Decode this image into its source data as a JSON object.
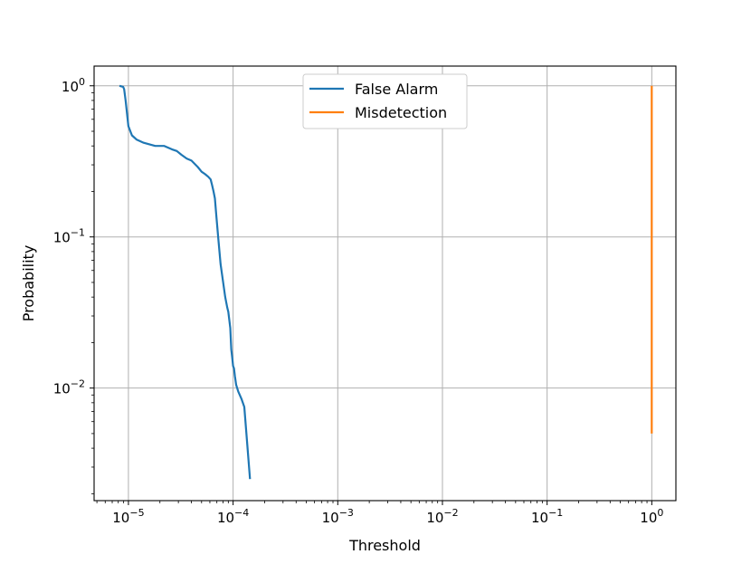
{
  "chart_data": {
    "type": "line",
    "xlabel": "Threshold",
    "ylabel": "Probability",
    "xscale": "log",
    "yscale": "log",
    "xlim": [
      4.7e-06,
      1.7
    ],
    "ylim": [
      0.0018,
      1.35
    ],
    "grid": true,
    "legend_position": "upper center",
    "x_tick_labels": [
      {
        "base": "10",
        "exp": "−5"
      },
      {
        "base": "10",
        "exp": "−4"
      },
      {
        "base": "10",
        "exp": "−3"
      },
      {
        "base": "10",
        "exp": "−2"
      },
      {
        "base": "10",
        "exp": "−1"
      },
      {
        "base": "10",
        "exp": "0"
      }
    ],
    "y_tick_labels": [
      {
        "base": "10",
        "exp": "−2"
      },
      {
        "base": "10",
        "exp": "−1"
      },
      {
        "base": "10",
        "exp": "0"
      }
    ],
    "series": [
      {
        "name": "False Alarm",
        "color": "#1f77b4",
        "x": [
          8.2e-06,
          8.9e-06,
          9.1e-06,
          9.4e-06,
          1e-05,
          1.08e-05,
          1.2e-05,
          1.4e-05,
          1.8e-05,
          2.2e-05,
          2.6e-05,
          2.9e-05,
          3.2e-05,
          3.6e-05,
          4e-05,
          4.6e-05,
          5e-05,
          5.4e-05,
          5.8e-05,
          6.1e-05,
          6.3e-05,
          6.5e-05,
          6.7e-05,
          6.9e-05,
          7.2e-05,
          7.6e-05,
          8.4e-05,
          8.6e-05,
          8.8e-05,
          9e-05,
          9.4e-05,
          9.6e-05,
          9.8e-05,
          0.0001,
          0.000102,
          0.000104,
          0.000107,
          0.000112,
          0.00012,
          0.000128,
          0.000145
        ],
        "y": [
          1.0,
          0.985,
          0.95,
          0.8,
          0.54,
          0.47,
          0.44,
          0.42,
          0.4,
          0.4,
          0.38,
          0.37,
          0.35,
          0.33,
          0.32,
          0.29,
          0.27,
          0.26,
          0.25,
          0.24,
          0.22,
          0.2,
          0.18,
          0.14,
          0.1,
          0.066,
          0.04,
          0.037,
          0.034,
          0.032,
          0.025,
          0.018,
          0.016,
          0.014,
          0.0135,
          0.012,
          0.0105,
          0.0095,
          0.0085,
          0.0075,
          0.0025
        ]
      },
      {
        "name": "Misdetection",
        "color": "#ff7f0e",
        "x": [
          1.0,
          1.0
        ],
        "y": [
          0.005,
          1.0
        ]
      }
    ]
  }
}
